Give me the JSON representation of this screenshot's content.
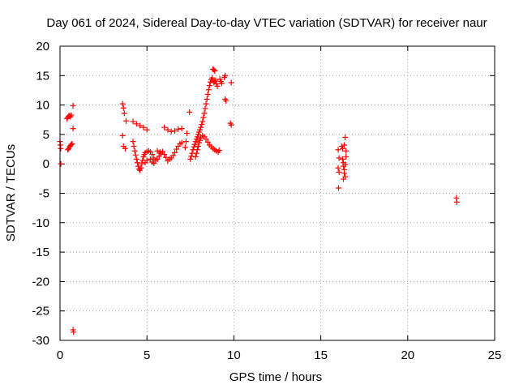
{
  "chart_data": {
    "type": "scatter",
    "title": "Day 061 of 2024, Sidereal Day-to-day VTEC variation (SDTVAR) for receiver naur",
    "xlabel": "GPS time / hours",
    "ylabel": "SDTVAR / TECUs",
    "xlim": [
      0,
      25
    ],
    "ylim": [
      -30,
      20
    ],
    "xticks": [
      0,
      5,
      10,
      15,
      20,
      25
    ],
    "yticks": [
      -30,
      -25,
      -20,
      -15,
      -10,
      -5,
      0,
      5,
      10,
      15,
      20
    ],
    "xtick_labels": [
      "0",
      "5",
      "10",
      "15",
      "20",
      "25"
    ],
    "ytick_labels": [
      "-30",
      "-25",
      "-20",
      "-15",
      "-10",
      "-5",
      "0",
      "5",
      "10",
      "15",
      "20"
    ],
    "grid": true,
    "marker": "+",
    "color": "#ff0000",
    "series": [
      {
        "name": "SDTVAR",
        "points": [
          [
            0.0,
            3.8
          ],
          [
            0.02,
            3.2
          ],
          [
            0.04,
            2.6
          ],
          [
            0.05,
            0.0
          ],
          [
            0.4,
            7.7
          ],
          [
            0.45,
            7.9
          ],
          [
            0.5,
            8.1
          ],
          [
            0.55,
            8.2
          ],
          [
            0.6,
            8.0
          ],
          [
            0.65,
            8.3
          ],
          [
            0.45,
            2.4
          ],
          [
            0.5,
            2.6
          ],
          [
            0.55,
            2.9
          ],
          [
            0.6,
            3.1
          ],
          [
            0.65,
            3.3
          ],
          [
            0.7,
            3.4
          ],
          [
            0.75,
            9.9
          ],
          [
            0.75,
            6.0
          ],
          [
            0.75,
            -28.2
          ],
          [
            0.78,
            -28.6
          ],
          [
            3.6,
            10.2
          ],
          [
            3.65,
            9.5
          ],
          [
            3.7,
            8.6
          ],
          [
            3.6,
            4.8
          ],
          [
            3.65,
            3.0
          ],
          [
            3.75,
            2.6
          ],
          [
            3.8,
            7.3
          ],
          [
            4.2,
            7.2
          ],
          [
            4.4,
            6.8
          ],
          [
            4.6,
            6.5
          ],
          [
            4.8,
            6.2
          ],
          [
            5.0,
            5.8
          ],
          [
            4.2,
            3.8
          ],
          [
            4.25,
            3.0
          ],
          [
            4.3,
            2.2
          ],
          [
            4.35,
            1.5
          ],
          [
            4.4,
            0.8
          ],
          [
            4.45,
            0.2
          ],
          [
            4.5,
            -0.4
          ],
          [
            4.55,
            -0.9
          ],
          [
            4.6,
            -1.1
          ],
          [
            4.65,
            -0.7
          ],
          [
            4.7,
            0.0
          ],
          [
            4.75,
            0.6
          ],
          [
            4.8,
            1.2
          ],
          [
            4.85,
            1.6
          ],
          [
            4.9,
            1.9
          ],
          [
            5.0,
            2.1
          ],
          [
            5.1,
            2.2
          ],
          [
            5.2,
            2.0
          ],
          [
            5.3,
            1.6
          ],
          [
            5.4,
            1.0
          ],
          [
            5.5,
            0.6
          ],
          [
            5.6,
            0.8
          ],
          [
            5.7,
            1.3
          ],
          [
            5.8,
            1.8
          ],
          [
            5.9,
            2.1
          ],
          [
            6.0,
            1.6
          ],
          [
            6.1,
            1.1
          ],
          [
            5.2,
            0.8
          ],
          [
            5.3,
            0.3
          ],
          [
            5.4,
            0.1
          ],
          [
            4.9,
            0.2
          ],
          [
            5.0,
            0.6
          ],
          [
            5.6,
            2.2
          ],
          [
            5.75,
            2.0
          ],
          [
            6.0,
            6.2
          ],
          [
            6.2,
            5.8
          ],
          [
            6.4,
            5.5
          ],
          [
            6.6,
            5.6
          ],
          [
            6.8,
            5.9
          ],
          [
            7.0,
            6.0
          ],
          [
            6.2,
            0.5
          ],
          [
            6.3,
            0.8
          ],
          [
            6.4,
            1.0
          ],
          [
            6.5,
            1.4
          ],
          [
            6.6,
            1.9
          ],
          [
            6.7,
            2.5
          ],
          [
            6.8,
            3.0
          ],
          [
            6.9,
            3.4
          ],
          [
            7.0,
            3.6
          ],
          [
            7.3,
            5.2
          ],
          [
            7.25,
            3.8
          ],
          [
            7.2,
            2.8
          ],
          [
            7.45,
            8.8
          ],
          [
            7.5,
            0.8
          ],
          [
            7.55,
            1.3
          ],
          [
            7.6,
            1.8
          ],
          [
            7.65,
            2.4
          ],
          [
            7.7,
            2.9
          ],
          [
            7.75,
            3.3
          ],
          [
            7.8,
            3.8
          ],
          [
            7.85,
            4.2
          ],
          [
            7.9,
            4.6
          ],
          [
            7.95,
            5.0
          ],
          [
            8.0,
            5.4
          ],
          [
            8.05,
            5.8
          ],
          [
            8.1,
            6.2
          ],
          [
            8.15,
            6.7
          ],
          [
            8.2,
            7.2
          ],
          [
            8.25,
            7.9
          ],
          [
            8.3,
            8.6
          ],
          [
            8.35,
            9.4
          ],
          [
            8.4,
            10.2
          ],
          [
            8.45,
            11.0
          ],
          [
            8.5,
            11.8
          ],
          [
            8.55,
            12.6
          ],
          [
            8.6,
            13.3
          ],
          [
            8.65,
            13.9
          ],
          [
            8.7,
            14.3
          ],
          [
            8.75,
            14.6
          ],
          [
            8.8,
            14.2
          ],
          [
            8.85,
            13.8
          ],
          [
            8.9,
            14.0
          ],
          [
            8.95,
            14.2
          ],
          [
            9.0,
            13.6
          ],
          [
            9.05,
            13.2
          ],
          [
            8.8,
            16.1
          ],
          [
            8.85,
            16.0
          ],
          [
            8.9,
            15.8
          ],
          [
            9.2,
            14.4
          ],
          [
            9.25,
            14.0
          ],
          [
            9.3,
            13.7
          ],
          [
            9.5,
            15.0
          ],
          [
            9.45,
            14.7
          ],
          [
            7.8,
            1.2
          ],
          [
            7.85,
            1.8
          ],
          [
            7.9,
            2.4
          ],
          [
            7.95,
            3.0
          ],
          [
            8.0,
            3.6
          ],
          [
            8.05,
            4.0
          ],
          [
            8.1,
            4.4
          ],
          [
            8.2,
            4.8
          ],
          [
            8.3,
            4.6
          ],
          [
            8.4,
            4.2
          ],
          [
            8.5,
            3.7
          ],
          [
            8.6,
            3.2
          ],
          [
            8.7,
            2.9
          ],
          [
            8.8,
            2.6
          ],
          [
            8.9,
            2.4
          ],
          [
            9.0,
            2.2
          ],
          [
            9.1,
            2.0
          ],
          [
            9.15,
            2.3
          ],
          [
            9.5,
            11.0
          ],
          [
            9.55,
            10.7
          ],
          [
            9.85,
            13.8
          ],
          [
            9.8,
            6.9
          ],
          [
            9.85,
            6.6
          ],
          [
            16.0,
            2.4
          ],
          [
            16.05,
            1.0
          ],
          [
            16.0,
            -0.7
          ],
          [
            16.05,
            -1.4
          ],
          [
            16.02,
            -4.1
          ],
          [
            16.2,
            3.0
          ],
          [
            16.25,
            2.6
          ],
          [
            16.25,
            0.8
          ],
          [
            16.3,
            0.2
          ],
          [
            16.3,
            -0.4
          ],
          [
            16.35,
            -1.0
          ],
          [
            16.35,
            -1.6
          ],
          [
            16.4,
            -2.2
          ],
          [
            16.3,
            -2.6
          ],
          [
            16.35,
            3.2
          ],
          [
            16.4,
            4.5
          ],
          [
            16.45,
            2.2
          ],
          [
            16.45,
            1.2
          ],
          [
            16.4,
            -0.1
          ],
          [
            22.8,
            -5.8
          ],
          [
            22.82,
            -6.5
          ]
        ]
      }
    ]
  }
}
